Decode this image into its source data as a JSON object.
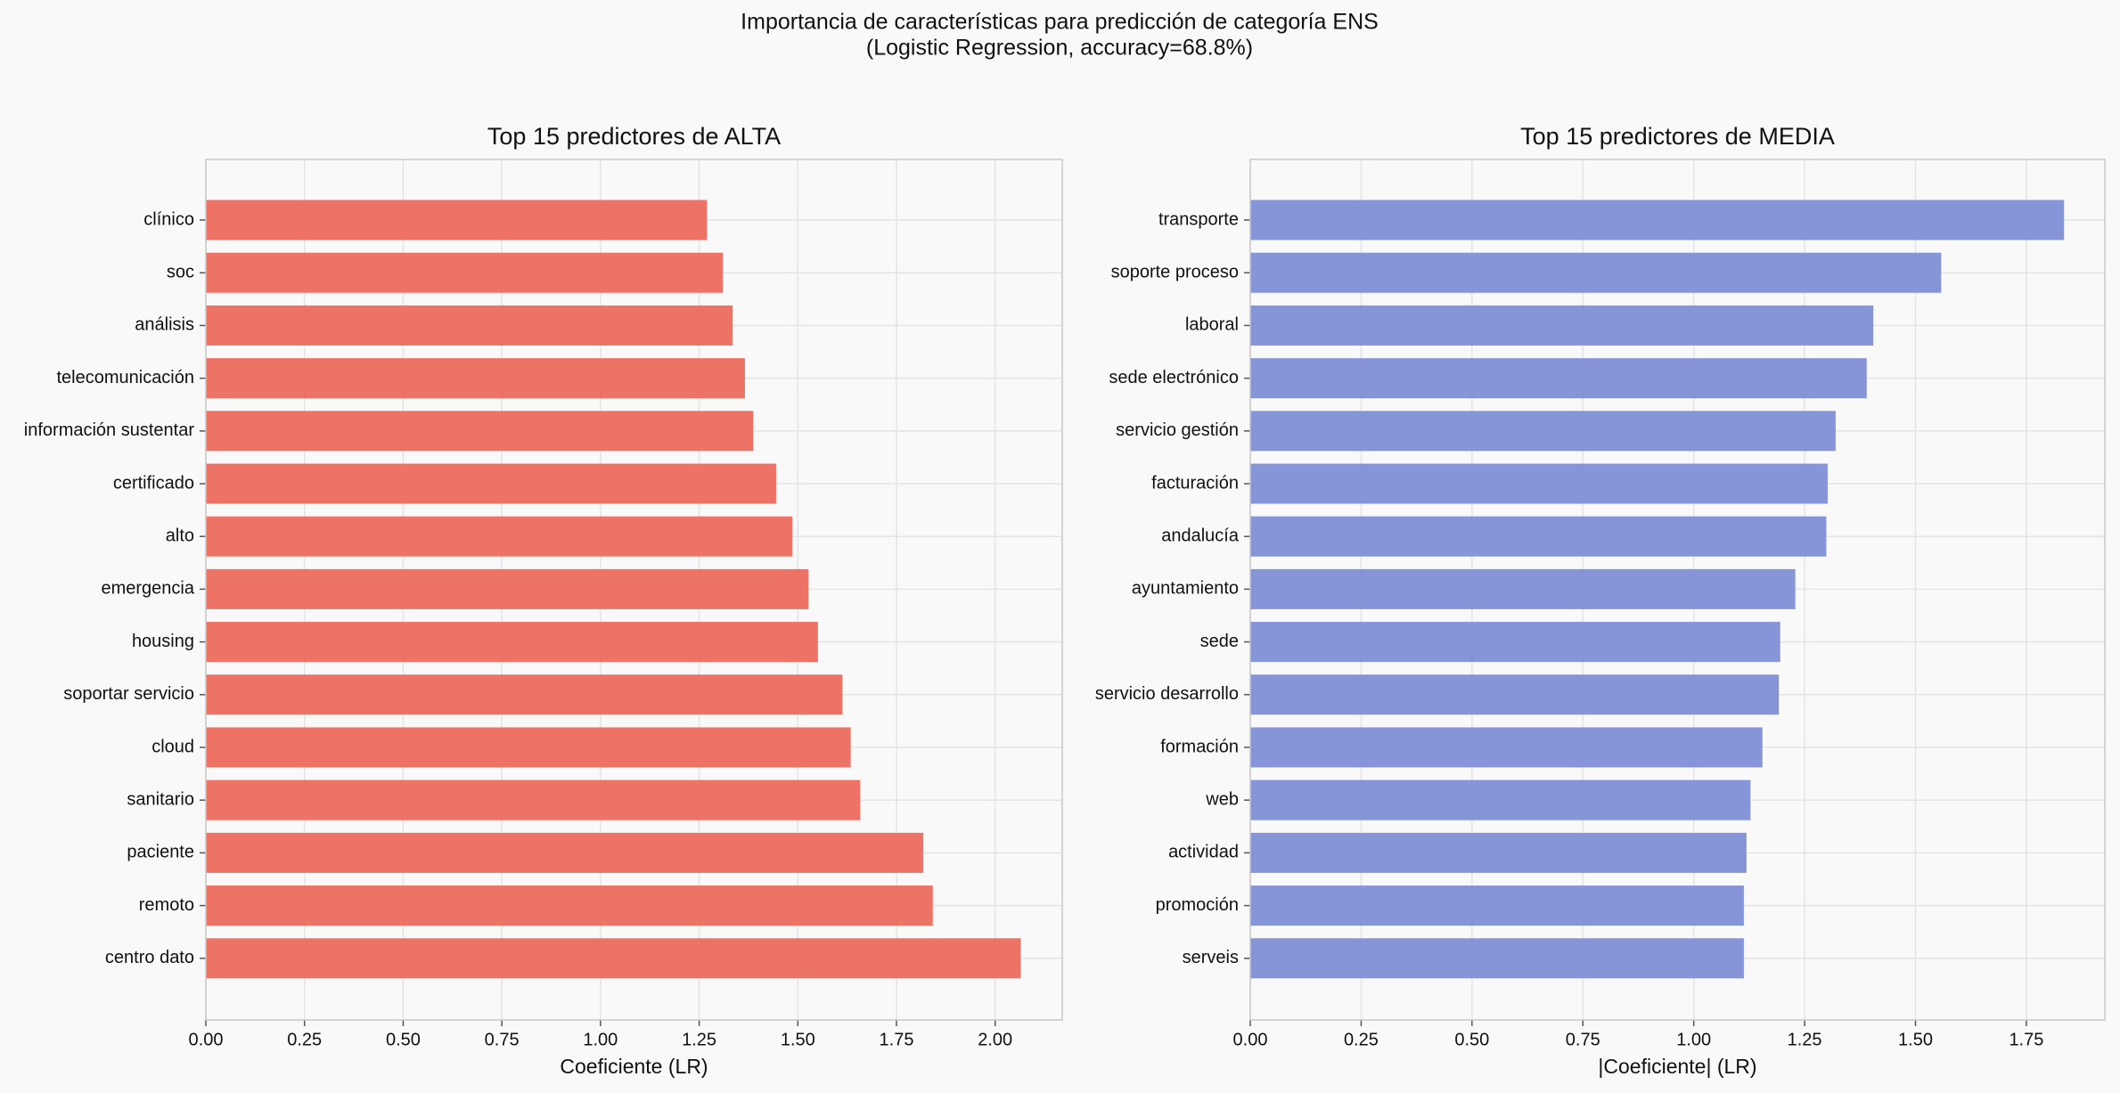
{
  "title": "Importancia de características para predicción de categoría ENS",
  "subtitle": "(Logistic Regression, accuracy=68.8%)",
  "chart_data": [
    {
      "type": "barh",
      "title": "Top 15 predictores de ALTA",
      "x_label": "Coeficiente (LR)",
      "color": "#ec6b5e",
      "grid": true,
      "categories": [
        "clínico",
        "soc",
        "análisis",
        "telecomunicación",
        "información sustentar",
        "certificado",
        "alto",
        "emergencia",
        "housing",
        "soportar servicio",
        "cloud",
        "sanitario",
        "paciente",
        "remoto",
        "centro dato"
      ],
      "values": [
        1.27,
        1.31,
        1.335,
        1.366,
        1.387,
        1.445,
        1.486,
        1.527,
        1.551,
        1.613,
        1.634,
        1.658,
        1.818,
        1.842,
        2.065
      ],
      "xlim": [
        0,
        2.17
      ],
      "xticks": [
        {
          "value": 0,
          "label": "0.00"
        },
        {
          "value": 0.25,
          "label": "0.25"
        },
        {
          "value": 0.5,
          "label": "0.50"
        },
        {
          "value": 0.75,
          "label": "0.75"
        },
        {
          "value": 1,
          "label": "1.00"
        },
        {
          "value": 1.25,
          "label": "1.25"
        },
        {
          "value": 1.5,
          "label": "1.50"
        },
        {
          "value": 1.75,
          "label": "1.75"
        },
        {
          "value": 2,
          "label": "2.00"
        }
      ]
    },
    {
      "type": "barh",
      "title": "Top 15 predictores de MEDIA",
      "x_label": "|Coeficiente| (LR)",
      "color": "#7f8fd6",
      "grid": true,
      "categories": [
        "transporte",
        "soporte proceso",
        "laboral",
        "sede electrónico",
        "servicio gestión",
        "facturación",
        "andalucía",
        "ayuntamiento",
        "sede",
        "servicio desarrollo",
        "formación",
        "web",
        "actividad",
        "promoción",
        "serveis"
      ],
      "values": [
        1.835,
        1.558,
        1.405,
        1.39,
        1.32,
        1.302,
        1.299,
        1.229,
        1.195,
        1.192,
        1.155,
        1.128,
        1.119,
        1.113,
        1.113
      ],
      "xlim": [
        0,
        1.927
      ],
      "xticks": [
        {
          "value": 0,
          "label": "0.00"
        },
        {
          "value": 0.25,
          "label": "0.25"
        },
        {
          "value": 0.5,
          "label": "0.50"
        },
        {
          "value": 0.75,
          "label": "0.75"
        },
        {
          "value": 1,
          "label": "1.00"
        },
        {
          "value": 1.25,
          "label": "1.25"
        },
        {
          "value": 1.5,
          "label": "1.50"
        },
        {
          "value": 1.75,
          "label": "1.75"
        }
      ]
    }
  ]
}
